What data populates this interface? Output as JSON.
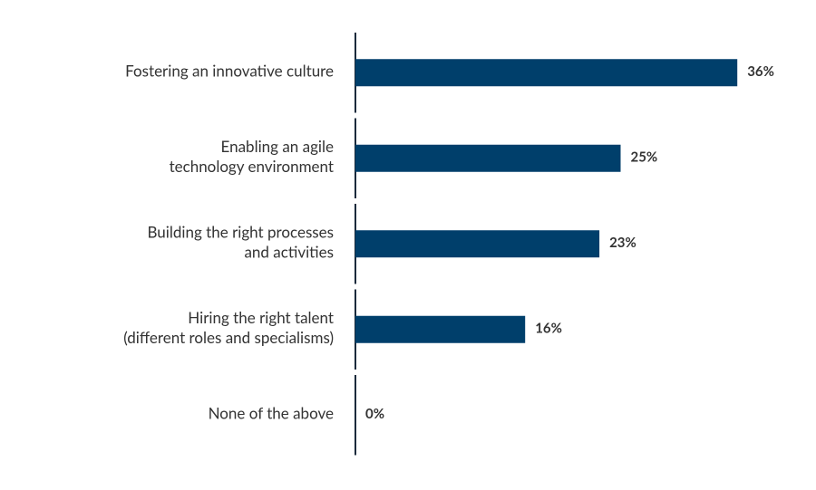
{
  "chart_data": {
    "type": "bar",
    "orientation": "horizontal",
    "categories": [
      "Fostering an innovative culture",
      "Enabling an agile\ntechnology environment",
      "Building the right processes\nand activities",
      "Hiring the right talent\n(different roles and specialisms)",
      "None of the above"
    ],
    "values": [
      36,
      25,
      23,
      16,
      0
    ],
    "value_labels": [
      "36%",
      "25%",
      "23%",
      "16%",
      "0%"
    ],
    "color": "#003f6b"
  }
}
